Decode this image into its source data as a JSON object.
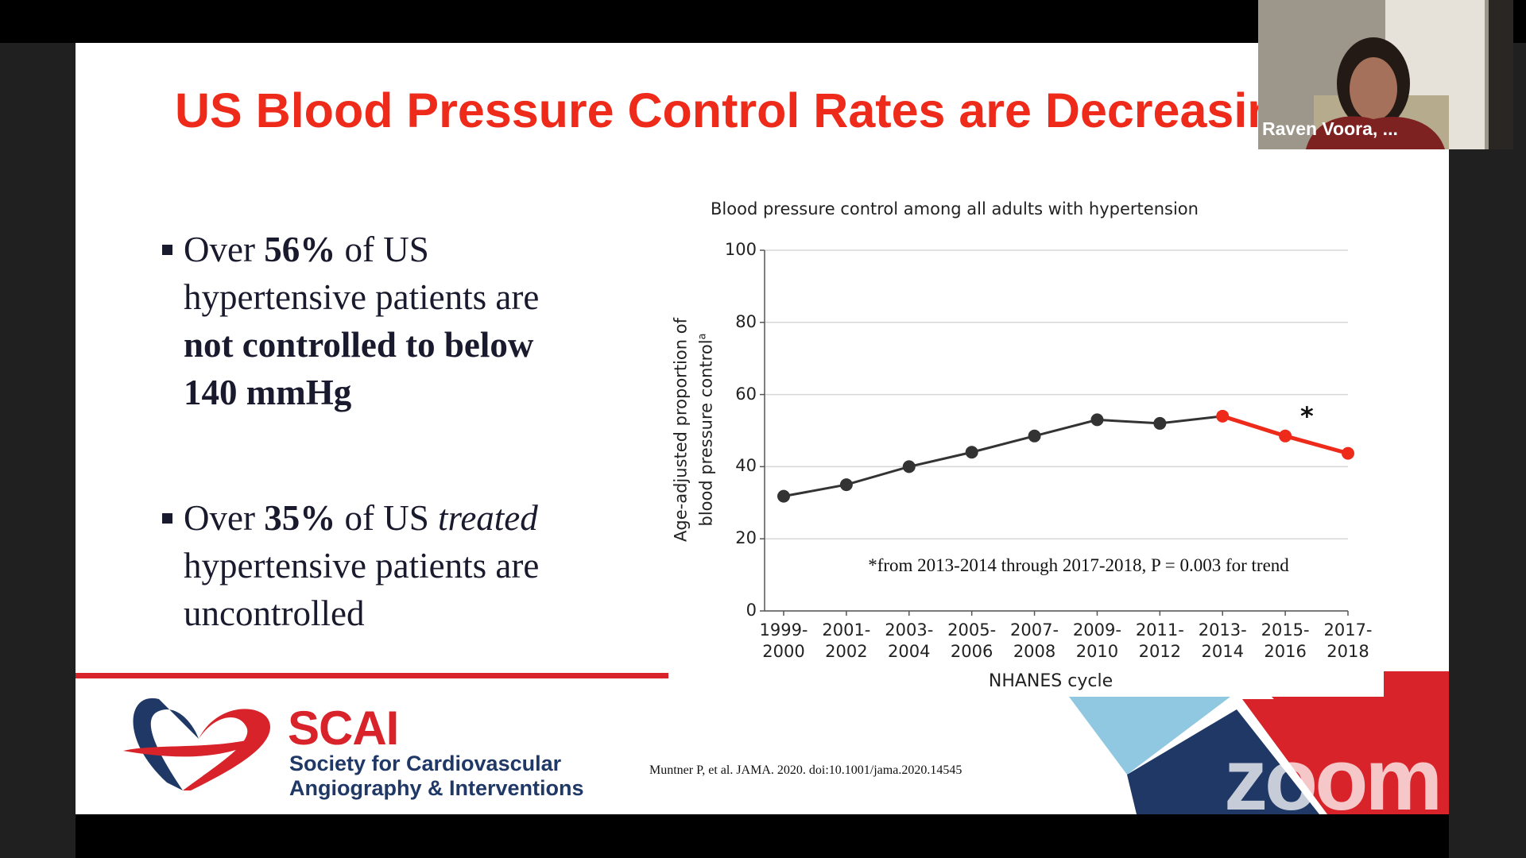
{
  "slide": {
    "title": "US Blood Pressure Control Rates are Decreasing",
    "bullets": [
      {
        "lines": [
          [
            {
              "text": "Over "
            },
            {
              "text": "56%",
              "bold": true
            },
            {
              "text": " of US"
            }
          ],
          [
            {
              "text": "hypertensive patients are"
            }
          ],
          [
            {
              "text": "not controlled to below",
              "bold": true
            }
          ],
          [
            {
              "text": "140 mmHg",
              "bold": true
            }
          ]
        ]
      },
      {
        "lines": [
          [
            {
              "text": "Over "
            },
            {
              "text": "35%",
              "bold": true
            },
            {
              "text": " of US "
            },
            {
              "text": "treated",
              "italic": true
            }
          ],
          [
            {
              "text": "hypertensive patients are"
            }
          ],
          [
            {
              "text": "uncontrolled"
            }
          ]
        ]
      }
    ],
    "logo": {
      "name": "SCAI",
      "line1": "Society for Cardiovascular",
      "line2": "Angiography & Interventions"
    },
    "citation": "Muntner P, et al. JAMA. 2020. doi:10.1001/jama.2020.14545"
  },
  "chart_data": {
    "type": "line",
    "title": "Blood pressure control among all adults with hypertension",
    "ylabel": [
      "Age-adjusted proportion of",
      "blood pressure control"
    ],
    "ylabel_sup": "a",
    "xlabel": "NHANES cycle",
    "categories": [
      "1999-2000",
      "2001-2002",
      "2003-2004",
      "2005-2006",
      "2007-2008",
      "2009-2010",
      "2011-2012",
      "2013-2014",
      "2015-2016",
      "2017-2018"
    ],
    "values": [
      31.8,
      35,
      40,
      44,
      48.5,
      53,
      52,
      54,
      48.5,
      43.7
    ],
    "point_colors": [
      "#333333",
      "#333333",
      "#333333",
      "#333333",
      "#333333",
      "#333333",
      "#333333",
      "#ee2a1b",
      "#ee2a1b",
      "#ee2a1b"
    ],
    "ylim": [
      0,
      100
    ],
    "yticks": [
      0,
      20,
      40,
      60,
      80,
      100
    ],
    "grid": true,
    "annotation_marker": "*",
    "note": "*from 2013-2014 through 2017-2018, P = 0.003 for trend"
  },
  "meeting": {
    "participant": "Raven Voora, ...",
    "watermark": "zoom"
  }
}
